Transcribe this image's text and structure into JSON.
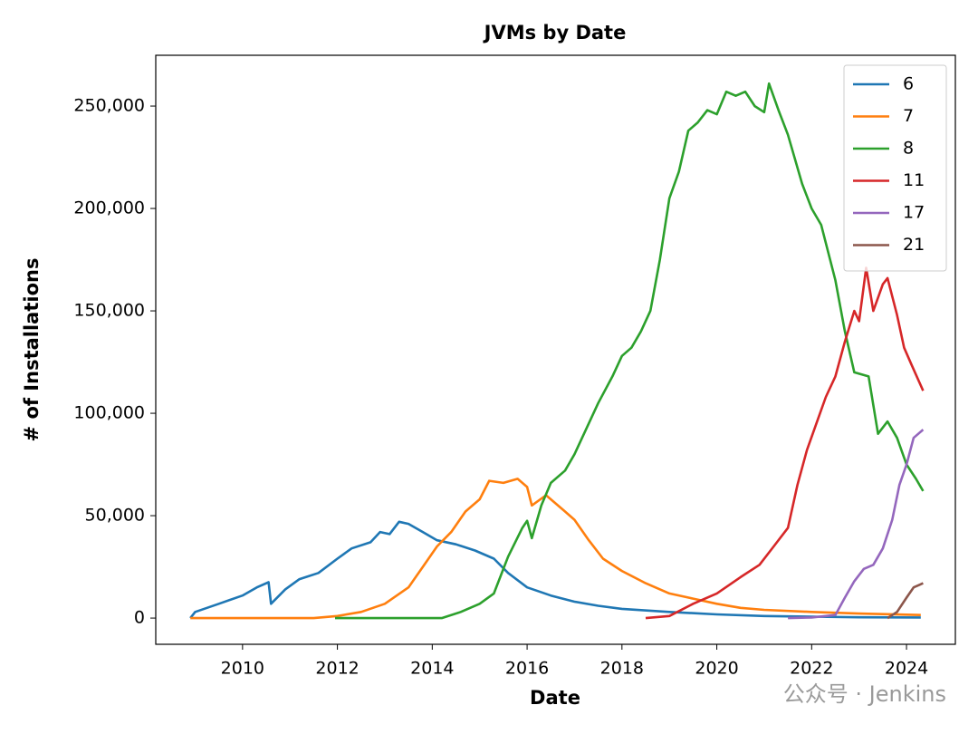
{
  "chart_data": {
    "type": "line",
    "title": "JVMs by Date",
    "xlabel": "Date",
    "ylabel": "# of Installations",
    "xlim": [
      2008.17,
      2025.03
    ],
    "xticks": [
      2010,
      2012,
      2014,
      2016,
      2018,
      2020,
      2022,
      2024
    ],
    "ylim": [
      -12800,
      274800
    ],
    "yticks": [
      0,
      {
        "value": 50000,
        "label": "50,000"
      },
      {
        "value": 100000,
        "label": "100,000"
      },
      {
        "value": 150000,
        "label": "150,000"
      },
      {
        "value": 200000,
        "label": "200,000"
      },
      {
        "value": 250000,
        "label": "250,000"
      }
    ],
    "legend": "upper right",
    "grid": false,
    "watermark": "公众号 · Jenkins",
    "series": [
      {
        "name": "6",
        "color": "#1f77b4",
        "x": [
          2008.9,
          2009.0,
          2009.5,
          2010.0,
          2010.3,
          2010.55,
          2010.6,
          2010.9,
          2011.2,
          2011.6,
          2012.0,
          2012.3,
          2012.7,
          2012.9,
          2013.1,
          2013.3,
          2013.5,
          2013.8,
          2014.1,
          2014.5,
          2014.9,
          2015.3,
          2015.6,
          2016.0,
          2016.5,
          2017.0,
          2017.5,
          2018.0,
          2019.0,
          2020.0,
          2021.0,
          2022.0,
          2023.0,
          2024.3
        ],
        "values": [
          0,
          3000,
          7000,
          11000,
          15000,
          17500,
          7000,
          14000,
          19000,
          22000,
          29000,
          34000,
          37000,
          42000,
          41000,
          47000,
          46000,
          42000,
          38000,
          36000,
          33000,
          29000,
          22000,
          15000,
          11000,
          8000,
          6000,
          4500,
          3000,
          1800,
          1000,
          700,
          400,
          300
        ]
      },
      {
        "name": "7",
        "color": "#ff7f0e",
        "x": [
          2008.9,
          2011.5,
          2012.0,
          2012.5,
          2013.0,
          2013.5,
          2013.8,
          2014.1,
          2014.4,
          2014.7,
          2015.0,
          2015.2,
          2015.5,
          2015.8,
          2016.0,
          2016.1,
          2016.4,
          2016.8,
          2017.0,
          2017.3,
          2017.6,
          2018.0,
          2018.5,
          2019.0,
          2019.5,
          2020.0,
          2020.5,
          2021.0,
          2022.0,
          2023.0,
          2024.3
        ],
        "values": [
          0,
          0,
          1000,
          3000,
          7000,
          15000,
          25000,
          35000,
          42000,
          52000,
          58000,
          67000,
          66000,
          68000,
          64000,
          55000,
          60000,
          52000,
          48000,
          38000,
          29000,
          23000,
          17000,
          12000,
          9500,
          7000,
          5000,
          4000,
          3000,
          2200,
          1500
        ]
      },
      {
        "name": "8",
        "color": "#2ca02c",
        "x": [
          2011.95,
          2014.2,
          2014.6,
          2015.0,
          2015.3,
          2015.6,
          2015.9,
          2016.0,
          2016.1,
          2016.3,
          2016.5,
          2016.8,
          2017.0,
          2017.2,
          2017.5,
          2017.8,
          2018.0,
          2018.2,
          2018.4,
          2018.6,
          2018.8,
          2019.0,
          2019.2,
          2019.4,
          2019.6,
          2019.8,
          2020.0,
          2020.2,
          2020.4,
          2020.6,
          2020.8,
          2021.0,
          2021.1,
          2021.3,
          2021.5,
          2021.8,
          2022.0,
          2022.2,
          2022.5,
          2022.7,
          2022.9,
          2023.2,
          2023.4,
          2023.6,
          2023.8,
          2024.0,
          2024.2,
          2024.35
        ],
        "values": [
          0,
          0,
          3000,
          7000,
          12000,
          30000,
          44000,
          47500,
          39000,
          55000,
          66000,
          72000,
          80000,
          90000,
          105000,
          118000,
          128000,
          132000,
          140000,
          150000,
          175000,
          205000,
          218000,
          238000,
          242000,
          248000,
          246000,
          257000,
          255000,
          257000,
          250000,
          247000,
          261000,
          248000,
          236000,
          212000,
          200000,
          192000,
          165000,
          140000,
          120000,
          118000,
          90000,
          96000,
          88000,
          75000,
          68000,
          62000
        ]
      },
      {
        "name": "11",
        "color": "#d62728",
        "x": [
          2018.5,
          2019.0,
          2019.5,
          2020.0,
          2020.5,
          2020.9,
          2021.2,
          2021.5,
          2021.7,
          2021.9,
          2022.1,
          2022.3,
          2022.5,
          2022.7,
          2022.9,
          2023.0,
          2023.15,
          2023.3,
          2023.5,
          2023.6,
          2023.8,
          2023.95,
          2024.1,
          2024.35
        ],
        "values": [
          0,
          1000,
          7000,
          12000,
          20000,
          26000,
          35000,
          44000,
          65000,
          82000,
          95000,
          108000,
          118000,
          135000,
          150000,
          145000,
          171000,
          150000,
          163000,
          166000,
          148000,
          132000,
          124000,
          111000
        ]
      },
      {
        "name": "17",
        "color": "#9467bd",
        "x": [
          2021.5,
          2022.0,
          2022.5,
          2022.7,
          2022.9,
          2023.1,
          2023.3,
          2023.5,
          2023.7,
          2023.85,
          2024.0,
          2024.15,
          2024.35
        ],
        "values": [
          0,
          300,
          1500,
          10000,
          18000,
          24000,
          26000,
          34000,
          48000,
          65000,
          75000,
          88000,
          92000
        ]
      },
      {
        "name": "21",
        "color": "#8c564b",
        "x": [
          2023.6,
          2023.8,
          2024.0,
          2024.15,
          2024.35
        ],
        "values": [
          0,
          3000,
          10000,
          15000,
          17000
        ]
      }
    ]
  }
}
